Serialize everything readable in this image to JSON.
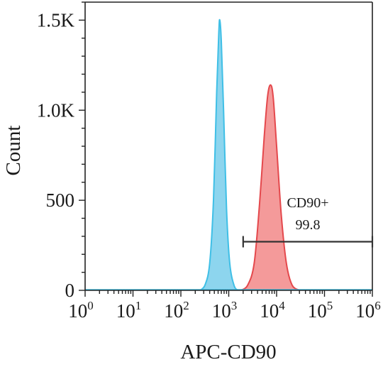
{
  "chart_data": {
    "type": "area",
    "xlabel": "APC-CD90",
    "ylabel": "Count",
    "x_scale": "log",
    "xlim": [
      1,
      1000000
    ],
    "ylim": [
      0,
      1600
    ],
    "x_ticks": [
      {
        "base": "10",
        "exp": "0",
        "value": 1
      },
      {
        "base": "10",
        "exp": "1",
        "value": 10
      },
      {
        "base": "10",
        "exp": "2",
        "value": 100
      },
      {
        "base": "10",
        "exp": "3",
        "value": 1000
      },
      {
        "base": "10",
        "exp": "4",
        "value": 10000
      },
      {
        "base": "10",
        "exp": "5",
        "value": 100000
      },
      {
        "base": "10",
        "exp": "6",
        "value": 1000000
      }
    ],
    "y_ticks": [
      {
        "label": "0",
        "value": 0
      },
      {
        "label": "500",
        "value": 500
      },
      {
        "label": "1.0K",
        "value": 1000
      },
      {
        "label": "1.5K",
        "value": 1500
      }
    ],
    "grid": false,
    "series": [
      {
        "color": "#3fbfe6",
        "fill": "#8dd5ee",
        "peak_x": 650,
        "peak_y": 1500,
        "points": [
          [
            250,
            0
          ],
          [
            320,
            30
          ],
          [
            400,
            150
          ],
          [
            480,
            500
          ],
          [
            560,
            1100
          ],
          [
            620,
            1430
          ],
          [
            650,
            1500
          ],
          [
            700,
            1380
          ],
          [
            780,
            1000
          ],
          [
            900,
            450
          ],
          [
            1050,
            150
          ],
          [
            1300,
            25
          ],
          [
            1600,
            0
          ]
        ]
      },
      {
        "color": "#e4484c",
        "fill": "#f49a9a",
        "peak_x": 7500,
        "peak_y": 1140,
        "points": [
          [
            1800,
            0
          ],
          [
            2500,
            30
          ],
          [
            3400,
            150
          ],
          [
            4400,
            480
          ],
          [
            5500,
            850
          ],
          [
            6500,
            1080
          ],
          [
            7500,
            1140
          ],
          [
            8500,
            1070
          ],
          [
            10000,
            800
          ],
          [
            12500,
            420
          ],
          [
            16000,
            150
          ],
          [
            21000,
            30
          ],
          [
            30000,
            0
          ]
        ]
      }
    ],
    "gate": {
      "name": "CD90+",
      "value": "99.8",
      "x_start": 2000,
      "x_end": 1000000,
      "y": 270
    }
  }
}
